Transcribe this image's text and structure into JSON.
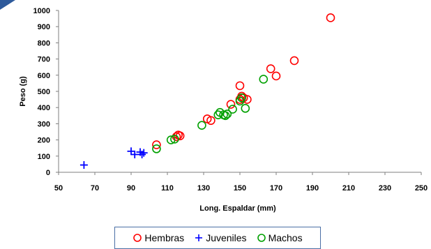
{
  "chart_data": {
    "type": "scatter",
    "xlabel": "Long. Espaldar (mm)",
    "ylabel": "Peso (g)",
    "xlim": [
      50,
      250
    ],
    "ylim": [
      0,
      1000
    ],
    "xticks": [
      "50",
      "70",
      "90",
      "110",
      "130",
      "150",
      "170",
      "190",
      "210",
      "230",
      "250"
    ],
    "yticks": [
      "0",
      "100",
      "200",
      "300",
      "400",
      "500",
      "600",
      "700",
      "800",
      "900",
      "1000"
    ],
    "grid": false,
    "legend_position": "bottom",
    "series": [
      {
        "name": "Hembras",
        "marker": "circle",
        "color": "#ff0000",
        "points": [
          [
            104,
            170
          ],
          [
            115,
            220
          ],
          [
            116,
            230
          ],
          [
            117,
            225
          ],
          [
            132,
            330
          ],
          [
            134,
            320
          ],
          [
            145,
            420
          ],
          [
            150,
            535
          ],
          [
            150,
            450
          ],
          [
            151,
            470
          ],
          [
            152,
            460
          ],
          [
            154,
            450
          ],
          [
            167,
            640
          ],
          [
            170,
            595
          ],
          [
            180,
            690
          ],
          [
            200,
            955
          ]
        ]
      },
      {
        "name": "Juveniles",
        "marker": "plus",
        "color": "#0000ff",
        "points": [
          [
            64,
            45
          ],
          [
            90,
            130
          ],
          [
            92,
            110
          ],
          [
            95,
            125
          ],
          [
            96,
            110
          ],
          [
            97,
            120
          ]
        ]
      },
      {
        "name": "Machos",
        "marker": "circle",
        "color": "#00a000",
        "points": [
          [
            104,
            145
          ],
          [
            112,
            200
          ],
          [
            114,
            205
          ],
          [
            129,
            290
          ],
          [
            138,
            355
          ],
          [
            139,
            370
          ],
          [
            141,
            355
          ],
          [
            142,
            350
          ],
          [
            143,
            360
          ],
          [
            146,
            390
          ],
          [
            150,
            440
          ],
          [
            151,
            460
          ],
          [
            153,
            395
          ],
          [
            163,
            575
          ]
        ]
      }
    ]
  },
  "legend": {
    "items": [
      {
        "label": "Hembras"
      },
      {
        "label": "Juveniles"
      },
      {
        "label": "Machos"
      }
    ]
  }
}
